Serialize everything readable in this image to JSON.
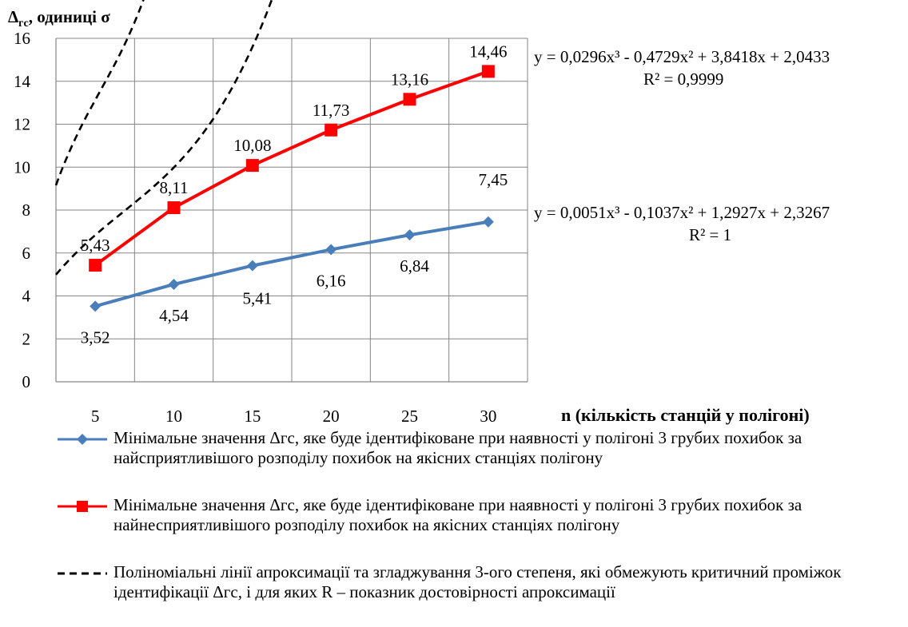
{
  "chart_data": {
    "type": "line",
    "ylabel_main": "Δ",
    "ylabel_sub": "гс",
    "ylabel_rest": ", одиниці σ",
    "xlabel": "n (кількість станцій у полігоні)",
    "categories": [
      "5",
      "10",
      "15",
      "20",
      "25",
      "30"
    ],
    "x": [
      5,
      10,
      15,
      20,
      25,
      30
    ],
    "ylim": [
      0,
      16
    ],
    "yticks": [
      0,
      2,
      4,
      6,
      8,
      10,
      12,
      14,
      16
    ],
    "grid": true,
    "series": [
      {
        "name": "Мінімальне значення Δгс, яке буде ідентифіковане при наявності у полігоні 3 грубих похибок за найсприятливішого розподілу похибок на якісних станціях полігону",
        "values": [
          3.52,
          4.54,
          5.41,
          6.16,
          6.84,
          7.45
        ],
        "labels": [
          "3,52",
          "4,54",
          "5,41",
          "6,16",
          "6,84",
          "7,45"
        ],
        "color": "#4a7ebb",
        "marker": "diamond"
      },
      {
        "name": "Мінімальне значення Δгс, яке буде ідентифіковане при наявності у полігоні 3 грубих похибок за найнесприятливішого  розподілу похибок на якісних станціях полігону",
        "values": [
          5.43,
          8.11,
          10.08,
          11.73,
          13.16,
          14.46
        ],
        "labels": [
          "5,43",
          "8,11",
          "10,08",
          "11,73",
          "13,16",
          "14,46"
        ],
        "color": "#ff0000",
        "marker": "square"
      }
    ],
    "trendlines": {
      "legend": " Поліноміальні лінії апроксимації та згладжування 3-ого степеня, які обмежують критичний проміжок ідентифікації  Δгс, і для яких R – показник достовірності апроксимації",
      "upper": {
        "equation": "y = 0,0296x³ - 0,4729x² + 3,8418x + 2,0433",
        "r2": "R² = 0,9999"
      },
      "lower": {
        "equation": "y = 0,0051x³ - 0,1037x² + 1,2927x + 2,3267",
        "r2": "R² = 1"
      }
    },
    "colors": {
      "blue": "#4a7ebb",
      "red": "#ff0000",
      "trend": "#000000",
      "grid": "#868686"
    }
  }
}
